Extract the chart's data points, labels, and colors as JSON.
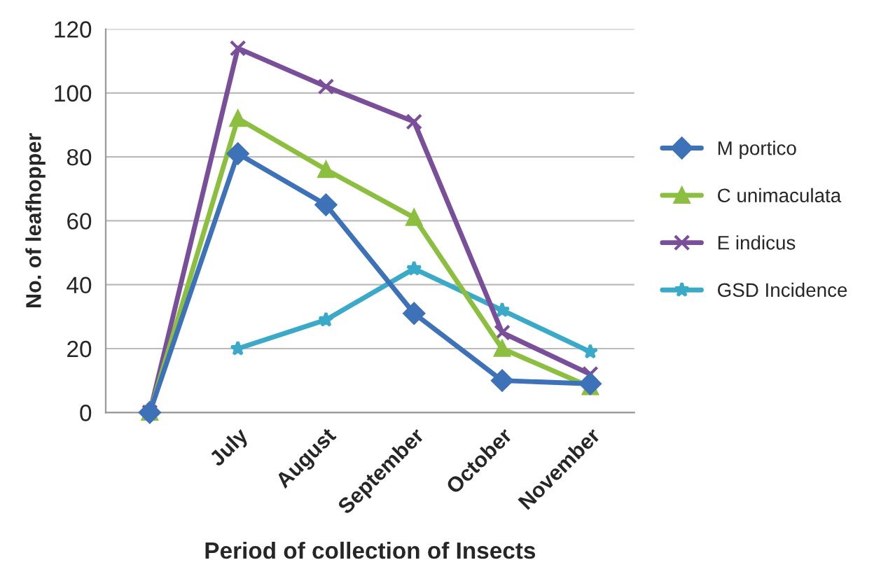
{
  "chart_data": {
    "type": "line",
    "xlabel": "Period of collection of Insects",
    "ylabel": "No. of leafhopper",
    "categories": [
      null,
      "July",
      "August",
      "September",
      "October",
      "November"
    ],
    "ylim": [
      0,
      120
    ],
    "yticks": [
      0,
      20,
      40,
      60,
      80,
      100,
      120
    ],
    "grid": "y",
    "legend": "right",
    "series": [
      {
        "name": "M portico",
        "color": "#3d72b8",
        "marker": "diamond",
        "values": [
          0,
          81,
          65,
          31,
          10,
          9
        ]
      },
      {
        "name": "C unimaculata",
        "color": "#8cbf3f",
        "marker": "triangle",
        "values": [
          0,
          92,
          76,
          61,
          20,
          8
        ]
      },
      {
        "name": "E indicus",
        "color": "#7a4f9a",
        "marker": "cross",
        "values": [
          0,
          114,
          102,
          91,
          25,
          12
        ]
      },
      {
        "name": "GSD Incidence",
        "color": "#3aaac8",
        "marker": "star",
        "values": [
          null,
          20,
          29,
          45,
          32,
          19
        ]
      }
    ]
  }
}
